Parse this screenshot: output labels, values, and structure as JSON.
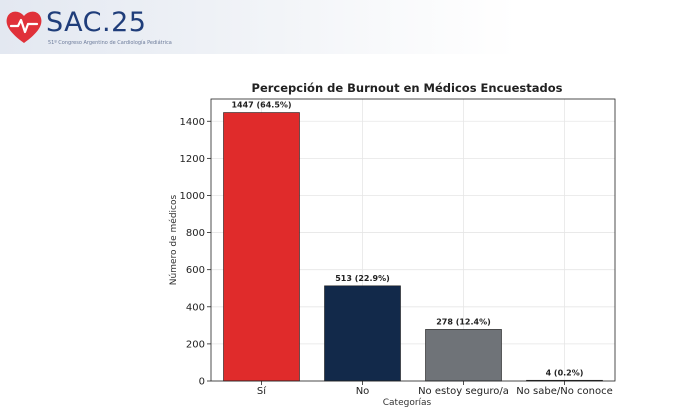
{
  "header": {
    "logo_text": "SAC.25",
    "logo_subtitle": "51º Congreso Argentino de Cardiología Pediátrica"
  },
  "colors": {
    "logo_heart": "#e0313a",
    "logo_text": "#1f3d7a"
  },
  "chart_data": {
    "type": "bar",
    "title": "Percepción de Burnout en Médicos Encuestados",
    "xlabel": "Categorías",
    "ylabel": "Número de médicos",
    "categories": [
      "Sí",
      "No",
      "No estoy seguro/a",
      "No sabe/No conoce"
    ],
    "values": [
      1447,
      513,
      278,
      4
    ],
    "data_labels": [
      "1447 (64.5%)",
      "513 (22.9%)",
      "278 (12.4%)",
      "4 (0.2%)"
    ],
    "colors": [
      "#e02b2b",
      "#12294a",
      "#6f7378",
      "#d9dadc"
    ],
    "ylim": [
      0,
      1520
    ],
    "yticks": [
      0,
      200,
      400,
      600,
      800,
      1000,
      1200,
      1400
    ],
    "grid": true,
    "legend": "none"
  }
}
